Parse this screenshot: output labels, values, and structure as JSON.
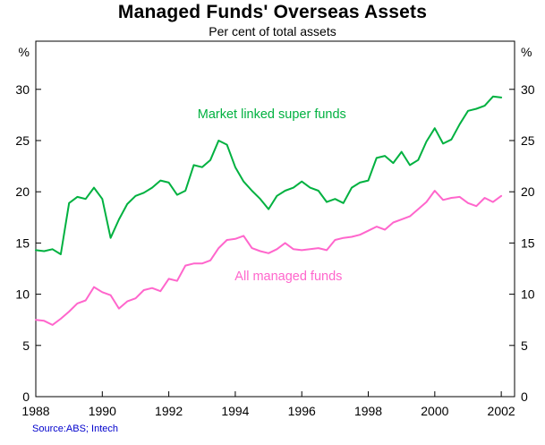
{
  "header": {
    "title": "Managed Funds' Overseas Assets",
    "subtitle": "Per cent of total assets"
  },
  "footer": {
    "source": "Source:ABS; Intech"
  },
  "chart_data": {
    "type": "line",
    "title": "Managed Funds' Overseas Assets",
    "subtitle": "Per cent of total assets",
    "unit_left": "%",
    "unit_right": "%",
    "x_start": 1988,
    "x_step": 0.25,
    "xlim": [
      1988,
      2002.4
    ],
    "ylim": [
      0,
      34.7
    ],
    "x_ticks": [
      1988,
      1990,
      1992,
      1994,
      1996,
      1998,
      2000,
      2002
    ],
    "y_ticks": [
      0,
      5,
      10,
      15,
      20,
      25,
      30
    ],
    "grid": false,
    "legend_position": "inline-annotations",
    "series": [
      {
        "name": "Market linked super funds",
        "color": "#00b140",
        "label_x": 1995.1,
        "label_y": 27.6,
        "values": [
          14.3,
          14.2,
          14.4,
          13.9,
          18.9,
          19.5,
          19.3,
          20.4,
          19.3,
          15.5,
          17.3,
          18.8,
          19.6,
          19.9,
          20.4,
          21.1,
          20.9,
          19.7,
          20.1,
          22.6,
          22.4,
          23.1,
          25.0,
          24.6,
          22.4,
          21.0,
          20.1,
          19.3,
          18.3,
          19.6,
          20.1,
          20.4,
          21.0,
          20.4,
          20.1,
          19.0,
          19.3,
          18.9,
          20.4,
          20.9,
          21.1,
          23.3,
          23.5,
          22.8,
          23.9,
          22.6,
          23.1,
          24.9,
          26.2,
          24.7,
          25.1,
          26.6,
          27.9,
          28.1,
          28.4,
          29.3,
          29.2
        ]
      },
      {
        "name": "All managed funds",
        "color": "#ff66cc",
        "label_x": 1995.6,
        "label_y": 11.8,
        "values": [
          7.5,
          7.4,
          7.0,
          7.6,
          8.3,
          9.1,
          9.4,
          10.7,
          10.2,
          9.9,
          8.6,
          9.3,
          9.6,
          10.4,
          10.6,
          10.3,
          11.5,
          11.3,
          12.8,
          13.0,
          13.0,
          13.3,
          14.5,
          15.3,
          15.4,
          15.7,
          14.5,
          14.2,
          14.0,
          14.4,
          15.0,
          14.4,
          14.3,
          14.4,
          14.5,
          14.3,
          15.3,
          15.5,
          15.6,
          15.8,
          16.2,
          16.6,
          16.3,
          17.0,
          17.3,
          17.6,
          18.3,
          19.0,
          20.1,
          19.2,
          19.4,
          19.5,
          18.9,
          18.6,
          19.4,
          19.0,
          19.6
        ]
      }
    ],
    "source": "Source:ABS; Intech"
  }
}
